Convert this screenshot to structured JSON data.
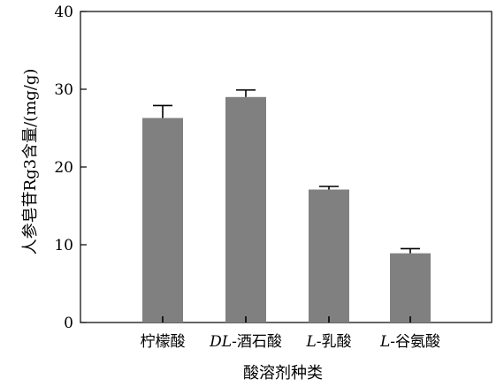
{
  "chart_data": {
    "type": "bar",
    "title": "",
    "xlabel": "酸溶剂种类",
    "ylabel": "人参皂苷Rg3含量/(mg/g)",
    "ylim": [
      0,
      40
    ],
    "yticks": [
      0,
      10,
      20,
      30,
      40
    ],
    "grid": false,
    "legend": "none",
    "categories": [
      {
        "prefix": "",
        "name": "柠檬酸"
      },
      {
        "prefix": "DL",
        "name": "-酒石酸"
      },
      {
        "prefix": "L",
        "name": "-乳酸"
      },
      {
        "prefix": "L",
        "name": "-谷氨酸"
      }
    ],
    "values": [
      26.3,
      29.0,
      17.1,
      8.9
    ],
    "errors": [
      1.6,
      0.9,
      0.4,
      0.6
    ],
    "bar_color": "#808080",
    "error_color": "#000000"
  }
}
